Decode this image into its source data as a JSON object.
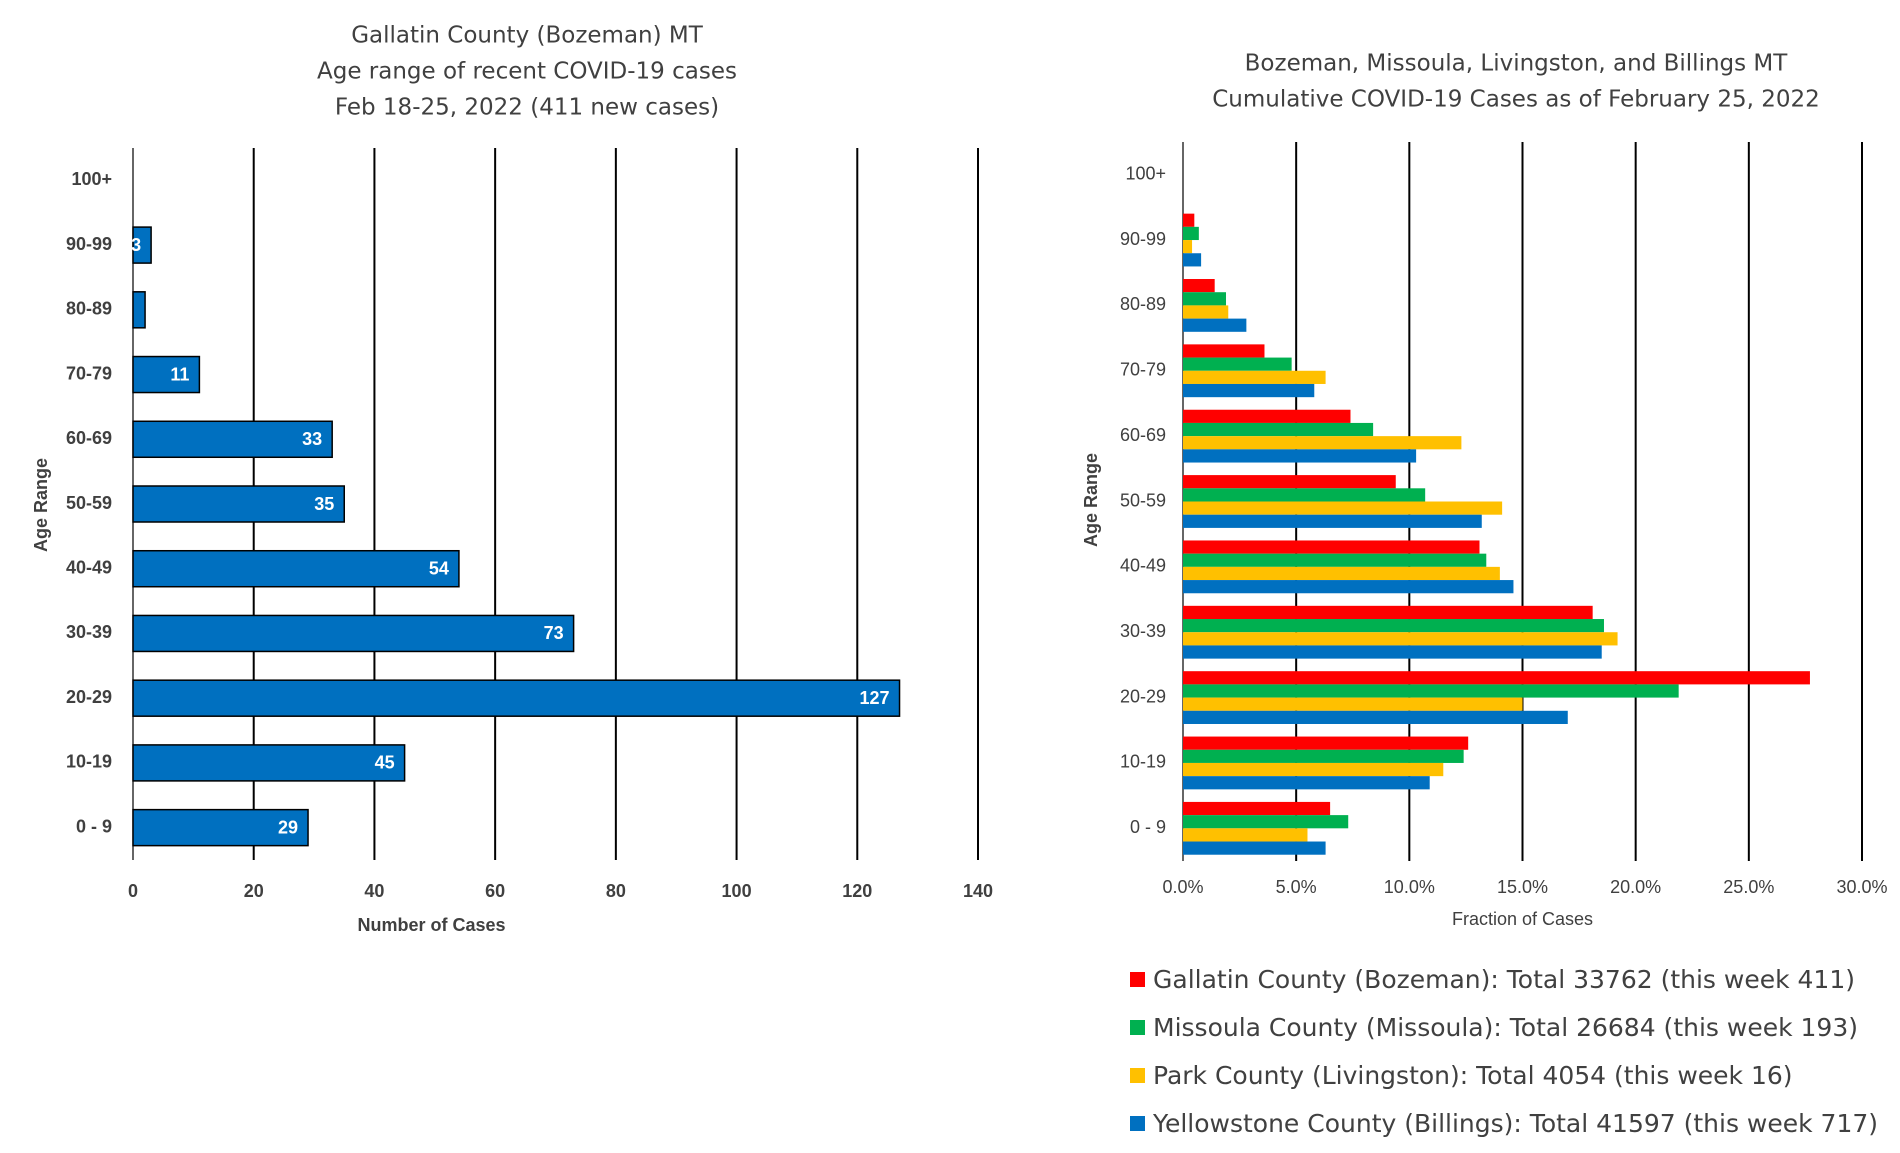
{
  "chart_data": [
    {
      "type": "bar",
      "orientation": "horizontal",
      "title": [
        "Gallatin County (Bozeman) MT",
        "Age range of recent COVID-19 cases",
        "Feb 18-25, 2022 (411 new cases)"
      ],
      "xlabel": "Number of Cases",
      "ylabel": "Age Range",
      "xlim": [
        0,
        140
      ],
      "xticks": [
        "0",
        "20",
        "40",
        "60",
        "80",
        "100",
        "120",
        "140"
      ],
      "categories": [
        "0 - 9",
        "10-19",
        "20-29",
        "30-39",
        "40-49",
        "50-59",
        "60-69",
        "70-79",
        "80-89",
        "90-99",
        "100+"
      ],
      "values": [
        29,
        45,
        127,
        73,
        54,
        35,
        33,
        11,
        2,
        3,
        0
      ],
      "data_labels": [
        "29",
        "45",
        "127",
        "73",
        "54",
        "35",
        "33",
        "11",
        "",
        "3",
        ""
      ],
      "color": "#0070C0",
      "grid": "vertical"
    },
    {
      "type": "bar",
      "orientation": "horizontal",
      "title": [
        "Bozeman, Missoula, Livingston, and Billings MT",
        "Cumulative COVID-19 Cases as of February 25, 2022"
      ],
      "xlabel": "Fraction of Cases",
      "ylabel": "Age Range",
      "xlim": [
        0,
        30
      ],
      "xticks": [
        "0.0%",
        "5.0%",
        "10.0%",
        "15.0%",
        "20.0%",
        "25.0%",
        "30.0%"
      ],
      "categories": [
        "0 - 9",
        "10-19",
        "20-29",
        "30-39",
        "40-49",
        "50-59",
        "60-69",
        "70-79",
        "80-89",
        "90-99",
        "100+"
      ],
      "series": [
        {
          "name": "Gallatin County (Bozeman): Total 33762 (this week 411)",
          "color": "#FF0000",
          "values": [
            6.5,
            12.6,
            27.7,
            18.1,
            13.1,
            9.4,
            7.4,
            3.6,
            1.4,
            0.5,
            0.0
          ]
        },
        {
          "name": "Missoula County (Missoula): Total 26684 (this week 193)",
          "color": "#00B050",
          "values": [
            7.3,
            12.4,
            21.9,
            18.6,
            13.4,
            10.7,
            8.4,
            4.8,
            1.9,
            0.7,
            0.0
          ]
        },
        {
          "name": "Park County (Livingston): Total 4054 (this week 16)",
          "color": "#FFC000",
          "values": [
            5.5,
            11.5,
            15.0,
            19.2,
            14.0,
            14.1,
            12.3,
            6.3,
            2.0,
            0.4,
            0.0
          ]
        },
        {
          "name": "Yellowstone County (Billings): Total 41597 (this week 717)",
          "color": "#0070C0",
          "values": [
            6.3,
            10.9,
            17.0,
            18.5,
            14.6,
            13.2,
            10.3,
            5.8,
            2.8,
            0.8,
            0.0
          ]
        }
      ],
      "grid": "vertical",
      "legend": "bottom"
    }
  ]
}
